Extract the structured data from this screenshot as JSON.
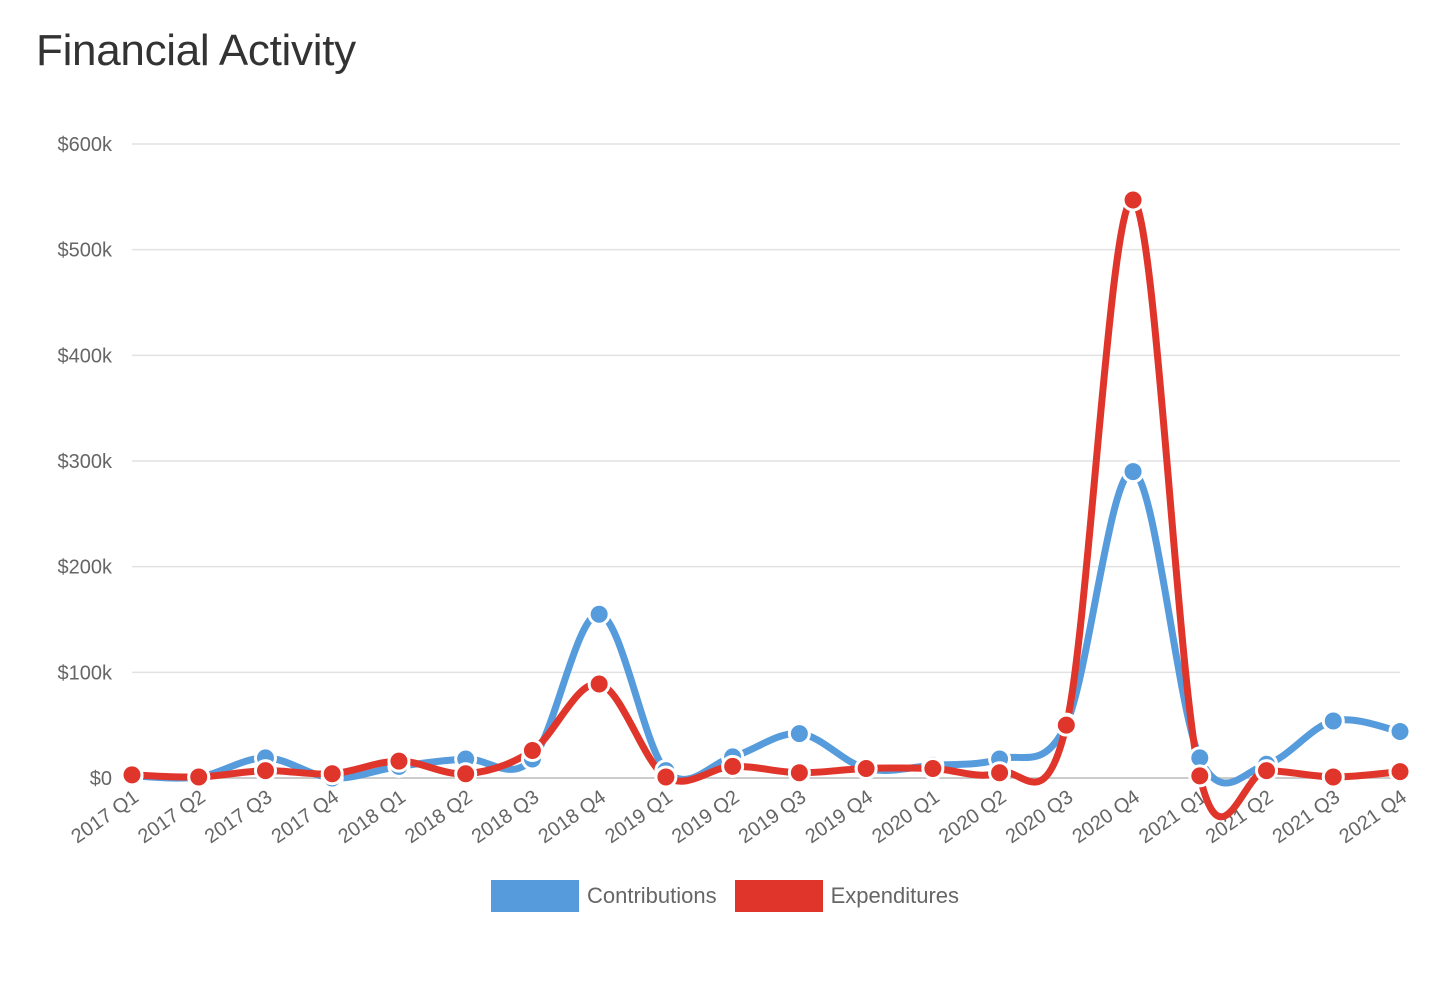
{
  "page": {
    "title": "Financial Activity"
  },
  "chart_data": {
    "type": "line",
    "title": "Financial Activity",
    "xlabel": "",
    "ylabel": "",
    "ylim": [
      0,
      600000
    ],
    "yticks": [
      {
        "value": 0,
        "label": "$0"
      },
      {
        "value": 100000,
        "label": "$100k"
      },
      {
        "value": 200000,
        "label": "$200k"
      },
      {
        "value": 300000,
        "label": "$300k"
      },
      {
        "value": 400000,
        "label": "$400k"
      },
      {
        "value": 500000,
        "label": "$500k"
      },
      {
        "value": 600000,
        "label": "$600k"
      }
    ],
    "categories": [
      "2017 Q1",
      "2017 Q2",
      "2017 Q3",
      "2017 Q4",
      "2018 Q1",
      "2018 Q2",
      "2018 Q3",
      "2018 Q4",
      "2019 Q1",
      "2019 Q2",
      "2019 Q3",
      "2019 Q4",
      "2020 Q1",
      "2020 Q2",
      "2020 Q3",
      "2020 Q4",
      "2021 Q1",
      "2021 Q2",
      "2021 Q3",
      "2021 Q4"
    ],
    "grid": true,
    "legend_position": "bottom-center",
    "series": [
      {
        "name": "Contributions",
        "color": "#569cdc",
        "values": [
          2000,
          1000,
          19000,
          0,
          11000,
          18000,
          18000,
          155000,
          7000,
          20000,
          42000,
          9000,
          12000,
          18000,
          51000,
          290000,
          19000,
          13000,
          54000,
          44000
        ]
      },
      {
        "name": "Expenditures",
        "color": "#e0352b",
        "values": [
          3000,
          1000,
          7000,
          4000,
          16000,
          4000,
          26000,
          89000,
          1000,
          11000,
          5000,
          9000,
          9000,
          5000,
          50000,
          547000,
          2000,
          7000,
          1000,
          6000
        ]
      }
    ]
  }
}
